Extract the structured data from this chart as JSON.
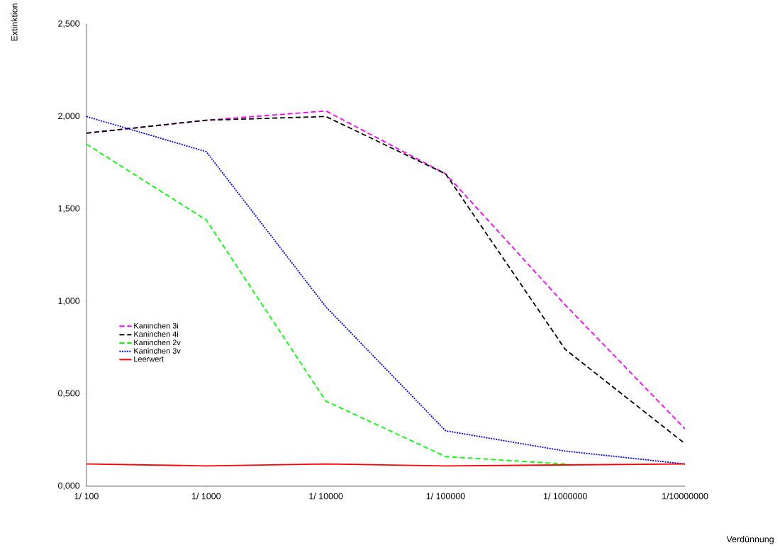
{
  "chart_data": {
    "type": "line",
    "xlabel": "Verdünnung",
    "ylabel": "Extinktion",
    "categories": [
      "1/ 100",
      "1/ 1000",
      "1/ 10000",
      "1/ 100000",
      "1/ 1000000",
      "1/10000000"
    ],
    "ylim": [
      0,
      2.5
    ],
    "yticks": [
      {
        "value": 0,
        "label": "0,000"
      },
      {
        "value": 0.5,
        "label": "0,500"
      },
      {
        "value": 1,
        "label": "1,000"
      },
      {
        "value": 1.5,
        "label": "1,500"
      },
      {
        "value": 2,
        "label": "2,000"
      },
      {
        "value": 2.5,
        "label": "2,500"
      }
    ],
    "grid": false,
    "legend": "left",
    "marker": "none",
    "series": [
      {
        "name": "Kaninchen 3i",
        "color": "#ff00ff",
        "line_style": "dashed",
        "values": [
          1.91,
          1.98,
          2.03,
          1.69,
          0.98,
          0.31
        ]
      },
      {
        "name": "Kaninchen 4i",
        "color": "#000000",
        "line_style": "dashed",
        "values": [
          1.91,
          1.98,
          2.0,
          1.69,
          0.74,
          0.23
        ]
      },
      {
        "name": "Kaninchen 2v",
        "color": "#00ff00",
        "line_style": "dashed",
        "values": [
          1.85,
          1.44,
          0.46,
          0.16,
          0.12,
          null
        ]
      },
      {
        "name": "Kaninchen 3v",
        "color": "#0000ff",
        "line_style": "dotted",
        "values": [
          2.0,
          1.81,
          0.97,
          0.3,
          0.19,
          0.12
        ]
      },
      {
        "name": "Leerwert",
        "color": "#ff0000",
        "line_style": "solid",
        "values": [
          0.12,
          0.11,
          0.12,
          0.11,
          0.115,
          0.12
        ]
      }
    ]
  }
}
